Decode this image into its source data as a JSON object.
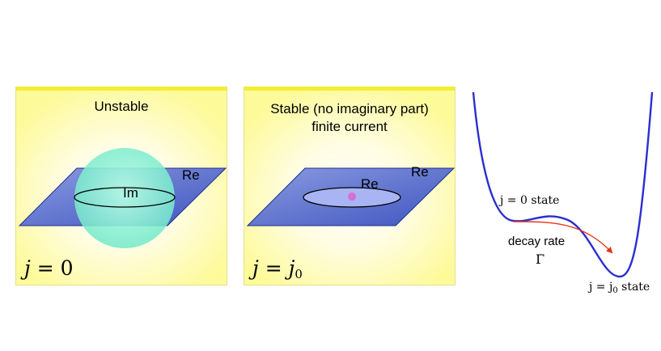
{
  "panels": [
    {
      "title": "Unstable",
      "plane_label": "Re",
      "center_label": "Im",
      "math_lhs": "j",
      "math_rhs": "0"
    },
    {
      "title_line1": "Stable (no imaginary part)",
      "title_line2": "finite current",
      "plane_label": "Re",
      "center_label": "Re",
      "math_lhs": "j",
      "math_rhs_base": "j",
      "math_rhs_sub": "0"
    }
  ],
  "potential": {
    "left_state": "j = 0 state",
    "decay_label": "decay rate",
    "gamma": "Γ",
    "right_state_prefix": "j = j",
    "right_state_sub": "0",
    "right_state_suffix": " state"
  },
  "colors": {
    "panel_top_bar": "#f2ee33",
    "plane_fill": "#6b7fd0",
    "plane_edge": "#1f2f8a",
    "sphere_fill": "#8ef2d6",
    "inner_disc": "#a8b4f4",
    "dot": "#d86fd0",
    "curve": "#2a2fd0",
    "arrow": "#e8321a"
  }
}
